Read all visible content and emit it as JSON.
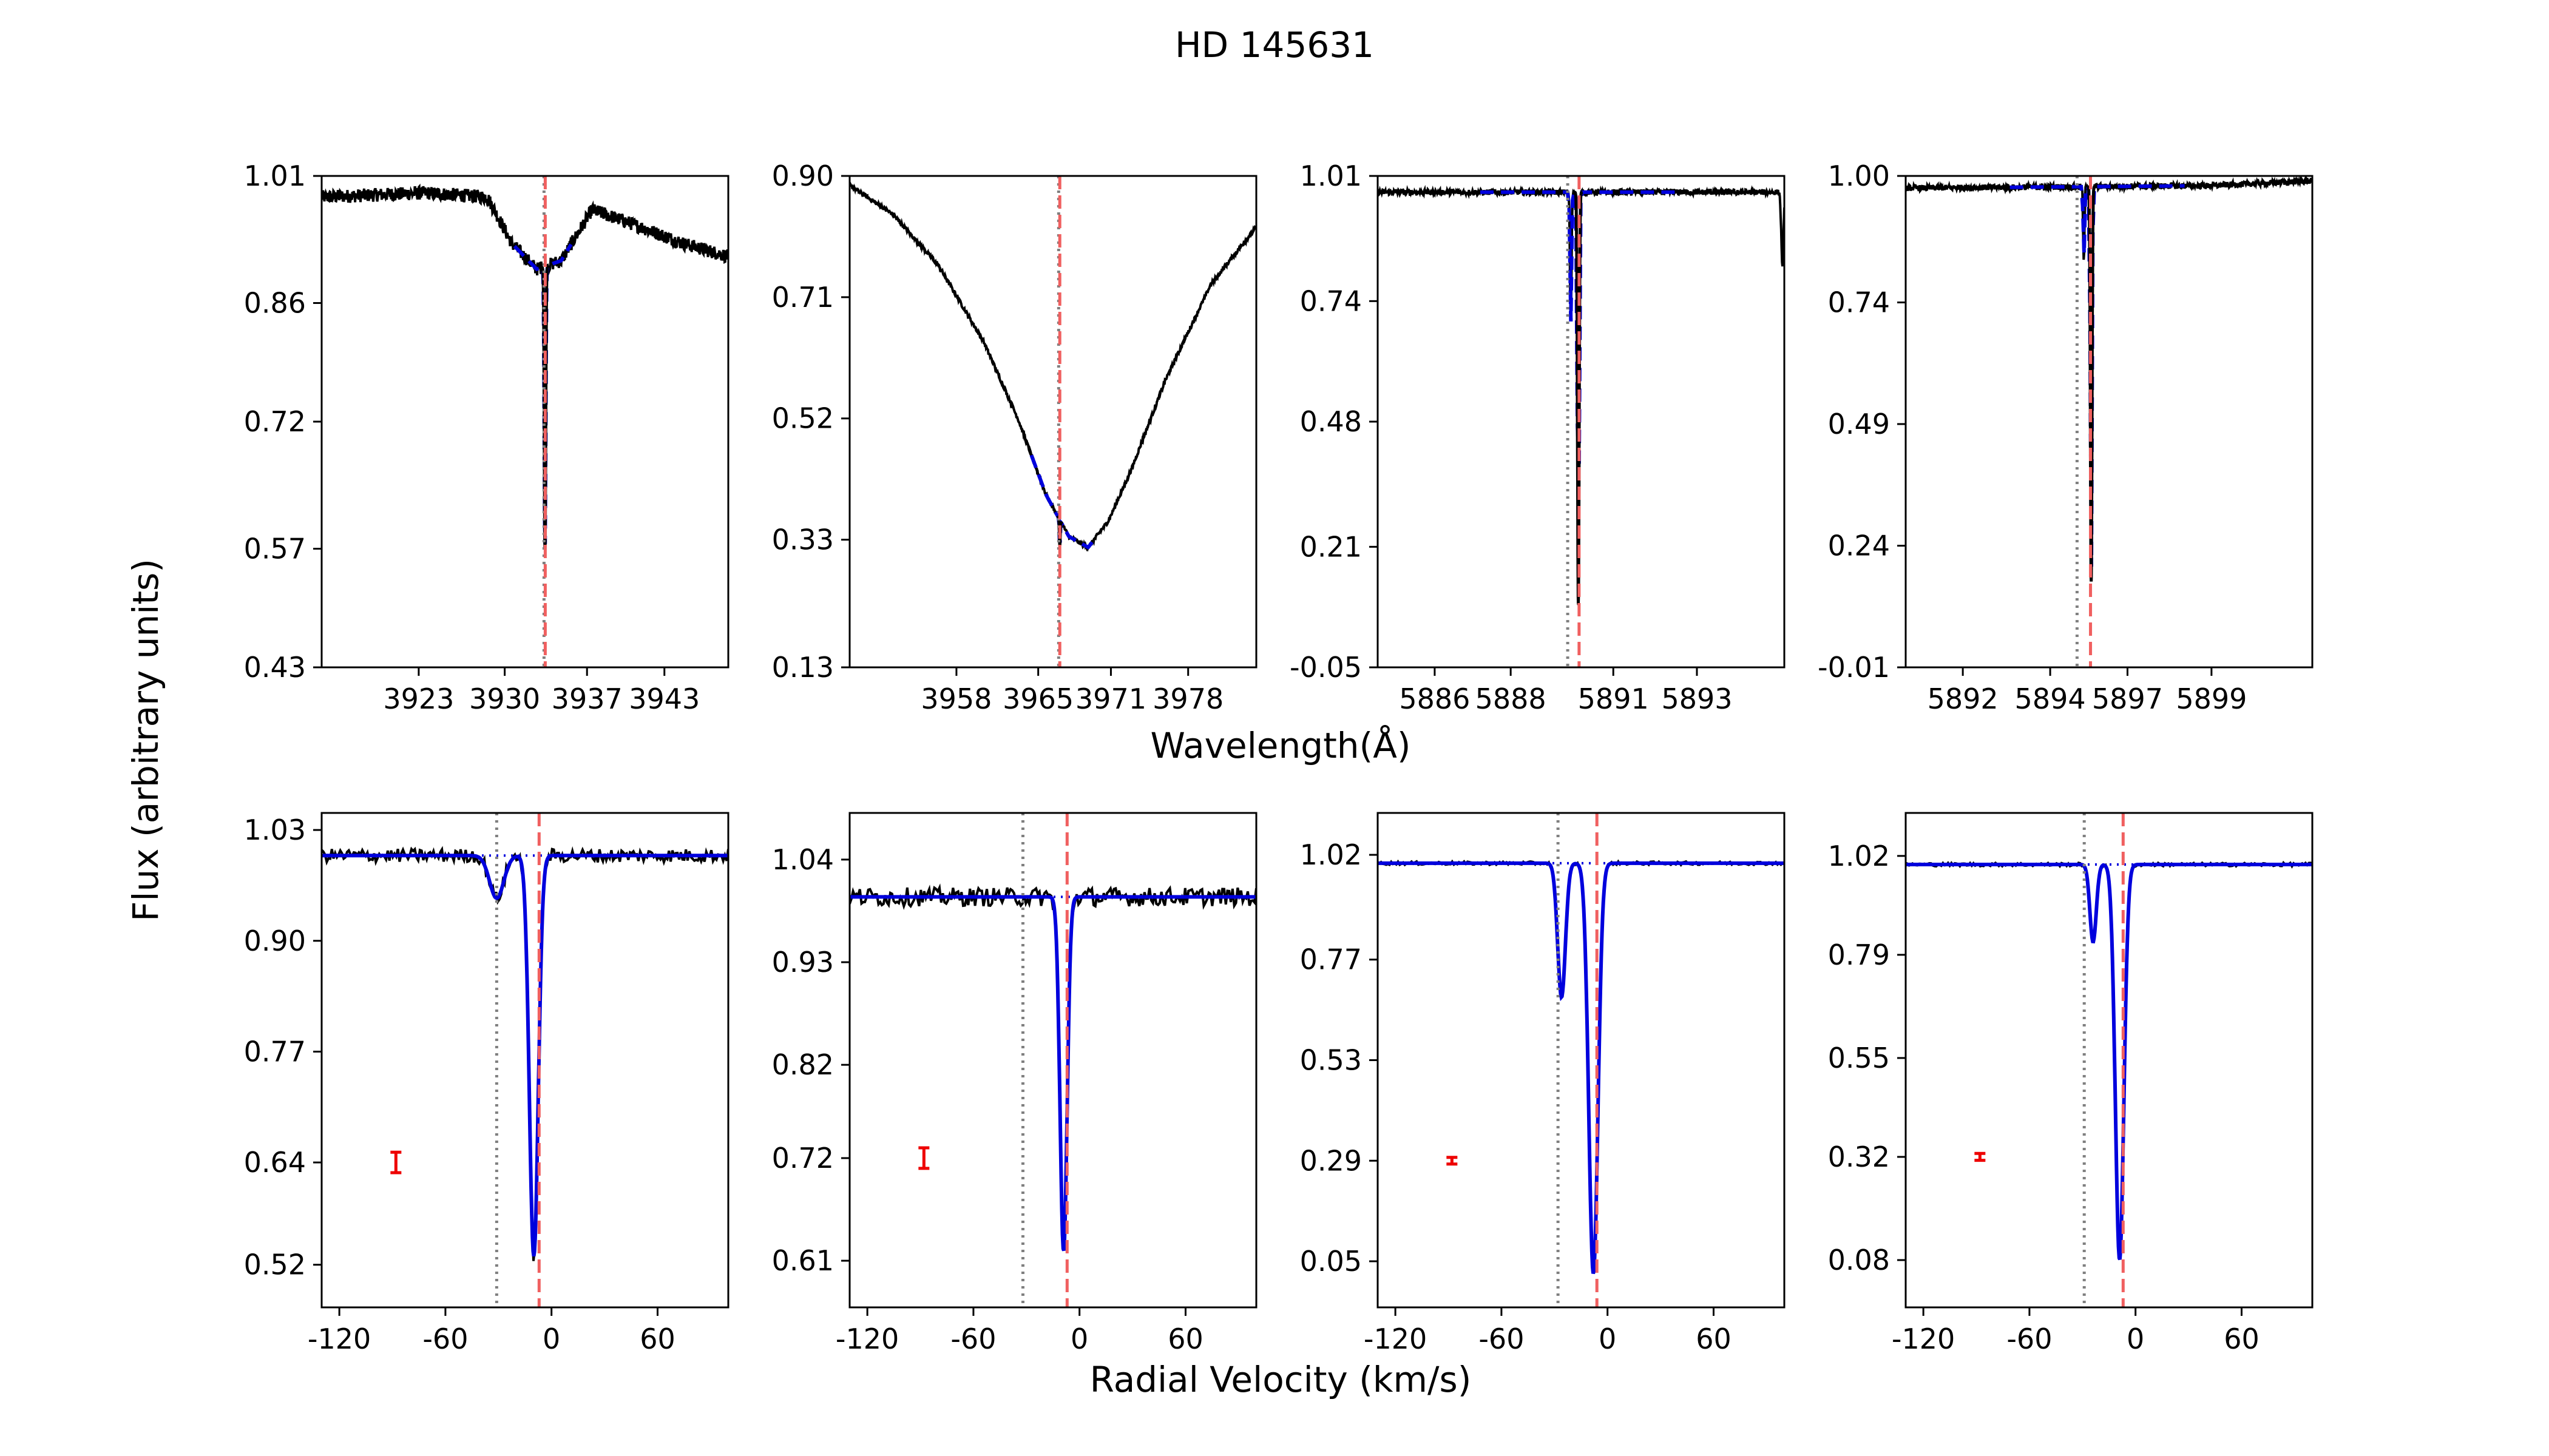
{
  "title": "HD 145631",
  "xlabel_top": "Wavelength(Å)",
  "xlabel_bottom": "Radial Velocity (km/s)",
  "ylabel": "Flux (arbitrary units)",
  "colors": {
    "spectrum": "#000000",
    "fit": "#0000dd",
    "marker_red": "#f06060",
    "marker_gray": "#808080",
    "error_bar": "#ee0000"
  },
  "chart_data": [
    {
      "type": "line",
      "row": "top",
      "panel": 1,
      "line_kind": "narrow",
      "xlim": [
        3915.5,
        3948.6
      ],
      "ylim": [
        0.43,
        1.01
      ],
      "xticks": [
        {
          "v": 3923.4,
          "label": "3923"
        },
        {
          "v": 3930.4,
          "label": "3930"
        },
        {
          "v": 3937.1,
          "label": "3937"
        },
        {
          "v": 3943.4,
          "label": "3943"
        }
      ],
      "yticks": [
        {
          "v": 0.43,
          "label": "0.43"
        },
        {
          "v": 0.57,
          "label": "0.57"
        },
        {
          "v": 0.72,
          "label": "0.72"
        },
        {
          "v": 0.86,
          "label": "0.86"
        },
        {
          "v": 1.01,
          "label": "1.01"
        }
      ],
      "red_line": 3933.7,
      "gray_line": 3933.6,
      "continuum": [
        [
          3915.5,
          0.985
        ],
        [
          3924,
          0.99
        ],
        [
          3929,
          0.985
        ],
        [
          3931,
          0.93
        ],
        [
          3933,
          0.9
        ],
        [
          3935,
          0.91
        ],
        [
          3937.5,
          0.97
        ],
        [
          3940.5,
          0.955
        ],
        [
          3945,
          0.93
        ],
        [
          3948.6,
          0.915
        ]
      ],
      "absorption": {
        "center": 3933.68,
        "depth": 0.37,
        "sigma": 0.06
      },
      "fit_range": [
        3931.2,
        3935.8
      ],
      "noise": 0.008
    },
    {
      "type": "line",
      "row": "top",
      "panel": 2,
      "line_kind": "broad",
      "xlim": [
        3948.2,
        3984.0
      ],
      "ylim": [
        0.13,
        0.9
      ],
      "xticks": [
        {
          "v": 3957.6,
          "label": "3958"
        },
        {
          "v": 3964.8,
          "label": "3965"
        },
        {
          "v": 3971.2,
          "label": "3971"
        },
        {
          "v": 3978.0,
          "label": "3978"
        }
      ],
      "yticks": [
        {
          "v": 0.13,
          "label": "0.13"
        },
        {
          "v": 0.33,
          "label": "0.33"
        },
        {
          "v": 0.52,
          "label": "0.52"
        },
        {
          "v": 0.71,
          "label": "0.71"
        },
        {
          "v": 0.9,
          "label": "0.90"
        }
      ],
      "red_line": 3966.7,
      "gray_line": 3966.6,
      "continuum": [
        [
          3948.2,
          0.885
        ],
        [
          3952,
          0.84
        ],
        [
          3956,
          0.76
        ],
        [
          3960,
          0.64
        ],
        [
          3963,
          0.52
        ],
        [
          3965.5,
          0.4
        ],
        [
          3967.5,
          0.335
        ],
        [
          3969.2,
          0.318
        ],
        [
          3971,
          0.36
        ],
        [
          3973,
          0.44
        ],
        [
          3976,
          0.58
        ],
        [
          3980,
          0.73
        ],
        [
          3984,
          0.82
        ]
      ],
      "absorption": {
        "center": 3966.7,
        "depth": 0.11,
        "sigma": 0.04
      },
      "fit_range": [
        3964.2,
        3969.8
      ],
      "noise": 0.003
    },
    {
      "type": "line",
      "row": "top",
      "panel": 3,
      "line_kind": "narrow",
      "xlim": [
        5884.3,
        5895.0
      ],
      "ylim": [
        -0.05,
        1.01
      ],
      "xticks": [
        {
          "v": 5885.8,
          "label": "5886"
        },
        {
          "v": 5887.8,
          "label": "5888"
        },
        {
          "v": 5890.5,
          "label": "5891"
        },
        {
          "v": 5892.7,
          "label": "5893"
        }
      ],
      "yticks": [
        {
          "v": -0.05,
          "label": "-0.05"
        },
        {
          "v": 0.21,
          "label": "0.21"
        },
        {
          "v": 0.48,
          "label": "0.48"
        },
        {
          "v": 0.74,
          "label": "0.74"
        },
        {
          "v": 1.01,
          "label": "1.01"
        }
      ],
      "red_line": 5889.6,
      "gray_line": 5889.3,
      "continuum": [
        [
          5884.3,
          0.975
        ],
        [
          5895.0,
          0.975
        ]
      ],
      "absorption": {
        "center": 5889.58,
        "depth": 0.91,
        "sigma": 0.022
      },
      "absorption2": {
        "center": 5889.38,
        "depth": 0.29,
        "sigma": 0.02
      },
      "telluric": [
        {
          "center": 5894.95,
          "depth": 0.16,
          "sigma": 0.03
        }
      ],
      "fit_range": [
        5887.0,
        5892.2
      ],
      "noise": 0.006
    },
    {
      "type": "line",
      "row": "top",
      "panel": 4,
      "line_kind": "narrow",
      "xlim": [
        5889.9,
        5902.0
      ],
      "ylim": [
        -0.01,
        1.0
      ],
      "xticks": [
        {
          "v": 5891.6,
          "label": "5892"
        },
        {
          "v": 5894.2,
          "label": "5894"
        },
        {
          "v": 5896.5,
          "label": "5897"
        },
        {
          "v": 5899.0,
          "label": "5899"
        }
      ],
      "yticks": [
        {
          "v": -0.01,
          "label": "-0.01"
        },
        {
          "v": 0.24,
          "label": "0.24"
        },
        {
          "v": 0.49,
          "label": "0.49"
        },
        {
          "v": 0.74,
          "label": "0.74"
        },
        {
          "v": 1.0,
          "label": "1.00"
        }
      ],
      "red_line": 5895.4,
      "gray_line": 5895.0,
      "continuum": [
        [
          5889.9,
          0.975
        ],
        [
          5899,
          0.98
        ],
        [
          5902.0,
          0.99
        ]
      ],
      "absorption": {
        "center": 5895.42,
        "depth": 0.83,
        "sigma": 0.024
      },
      "absorption2": {
        "center": 5895.2,
        "depth": 0.16,
        "sigma": 0.02
      },
      "fit_range": [
        5893.0,
        5898.2
      ],
      "noise": 0.006
    },
    {
      "type": "line",
      "row": "bottom",
      "panel": 1,
      "xlim": [
        -130,
        100
      ],
      "ylim": [
        0.47,
        1.05
      ],
      "xticks": [
        {
          "v": -120,
          "label": "-120"
        },
        {
          "v": -60,
          "label": "-60"
        },
        {
          "v": 0,
          "label": "0"
        },
        {
          "v": 60,
          "label": "60"
        }
      ],
      "yticks": [
        {
          "v": 0.52,
          "label": "0.52"
        },
        {
          "v": 0.64,
          "label": "0.64"
        },
        {
          "v": 0.77,
          "label": "0.77"
        },
        {
          "v": 0.9,
          "label": "0.90"
        },
        {
          "v": 1.03,
          "label": "1.03"
        }
      ],
      "red_line": -7,
      "gray_line": -31,
      "continuum_level": 1.0,
      "components": [
        {
          "v": -31,
          "depth": 0.05,
          "sigma": 4
        },
        {
          "v": -10,
          "depth": 0.47,
          "sigma": 2.5
        }
      ],
      "error_bar": {
        "x": -88,
        "y": 0.64,
        "err": 0.012
      },
      "noise": 0.008
    },
    {
      "type": "line",
      "row": "bottom",
      "panel": 2,
      "xlim": [
        -130,
        100
      ],
      "ylim": [
        0.56,
        1.09
      ],
      "xticks": [
        {
          "v": -120,
          "label": "-120"
        },
        {
          "v": -60,
          "label": "-60"
        },
        {
          "v": 0,
          "label": "0"
        },
        {
          "v": 60,
          "label": "60"
        }
      ],
      "yticks": [
        {
          "v": 0.61,
          "label": "0.61"
        },
        {
          "v": 0.72,
          "label": "0.72"
        },
        {
          "v": 0.82,
          "label": "0.82"
        },
        {
          "v": 0.93,
          "label": "0.93"
        },
        {
          "v": 1.04,
          "label": "1.04"
        }
      ],
      "red_line": -7,
      "gray_line": -32,
      "continuum_level": 1.0,
      "components": [
        {
          "v": -9,
          "depth": 0.38,
          "sigma": 2
        }
      ],
      "error_bar": {
        "x": -88,
        "y": 0.72,
        "err": 0.011
      },
      "noise": 0.01
    },
    {
      "type": "line",
      "row": "bottom",
      "panel": 3,
      "xlim": [
        -130,
        100
      ],
      "ylim": [
        -0.06,
        1.12
      ],
      "xticks": [
        {
          "v": -120,
          "label": "-120"
        },
        {
          "v": -60,
          "label": "-60"
        },
        {
          "v": 0,
          "label": "0"
        },
        {
          "v": 60,
          "label": "60"
        }
      ],
      "yticks": [
        {
          "v": 0.05,
          "label": "0.05"
        },
        {
          "v": 0.29,
          "label": "0.29"
        },
        {
          "v": 0.53,
          "label": "0.53"
        },
        {
          "v": 0.77,
          "label": "0.77"
        },
        {
          "v": 1.02,
          "label": "1.02"
        }
      ],
      "red_line": -6,
      "gray_line": -28,
      "continuum_level": 1.0,
      "components": [
        {
          "v": -26,
          "depth": 0.32,
          "sigma": 2.2
        },
        {
          "v": -8,
          "depth": 0.98,
          "sigma": 2.6
        }
      ],
      "error_bar": {
        "x": -88,
        "y": 0.29,
        "err": 0.008
      },
      "noise": 0.004
    },
    {
      "type": "line",
      "row": "bottom",
      "panel": 4,
      "xlim": [
        -130,
        100
      ],
      "ylim": [
        -0.03,
        1.12
      ],
      "xticks": [
        {
          "v": -120,
          "label": "-120"
        },
        {
          "v": -60,
          "label": "-60"
        },
        {
          "v": 0,
          "label": "0"
        },
        {
          "v": 60,
          "label": "60"
        }
      ],
      "yticks": [
        {
          "v": 0.08,
          "label": "0.08"
        },
        {
          "v": 0.32,
          "label": "0.32"
        },
        {
          "v": 0.55,
          "label": "0.55"
        },
        {
          "v": 0.79,
          "label": "0.79"
        },
        {
          "v": 1.02,
          "label": "1.02"
        }
      ],
      "red_line": -7,
      "gray_line": -29,
      "continuum_level": 1.0,
      "components": [
        {
          "v": -24,
          "depth": 0.18,
          "sigma": 1.8
        },
        {
          "v": -9,
          "depth": 0.92,
          "sigma": 2.4
        }
      ],
      "error_bar": {
        "x": -88,
        "y": 0.32,
        "err": 0.008
      },
      "noise": 0.004
    }
  ]
}
